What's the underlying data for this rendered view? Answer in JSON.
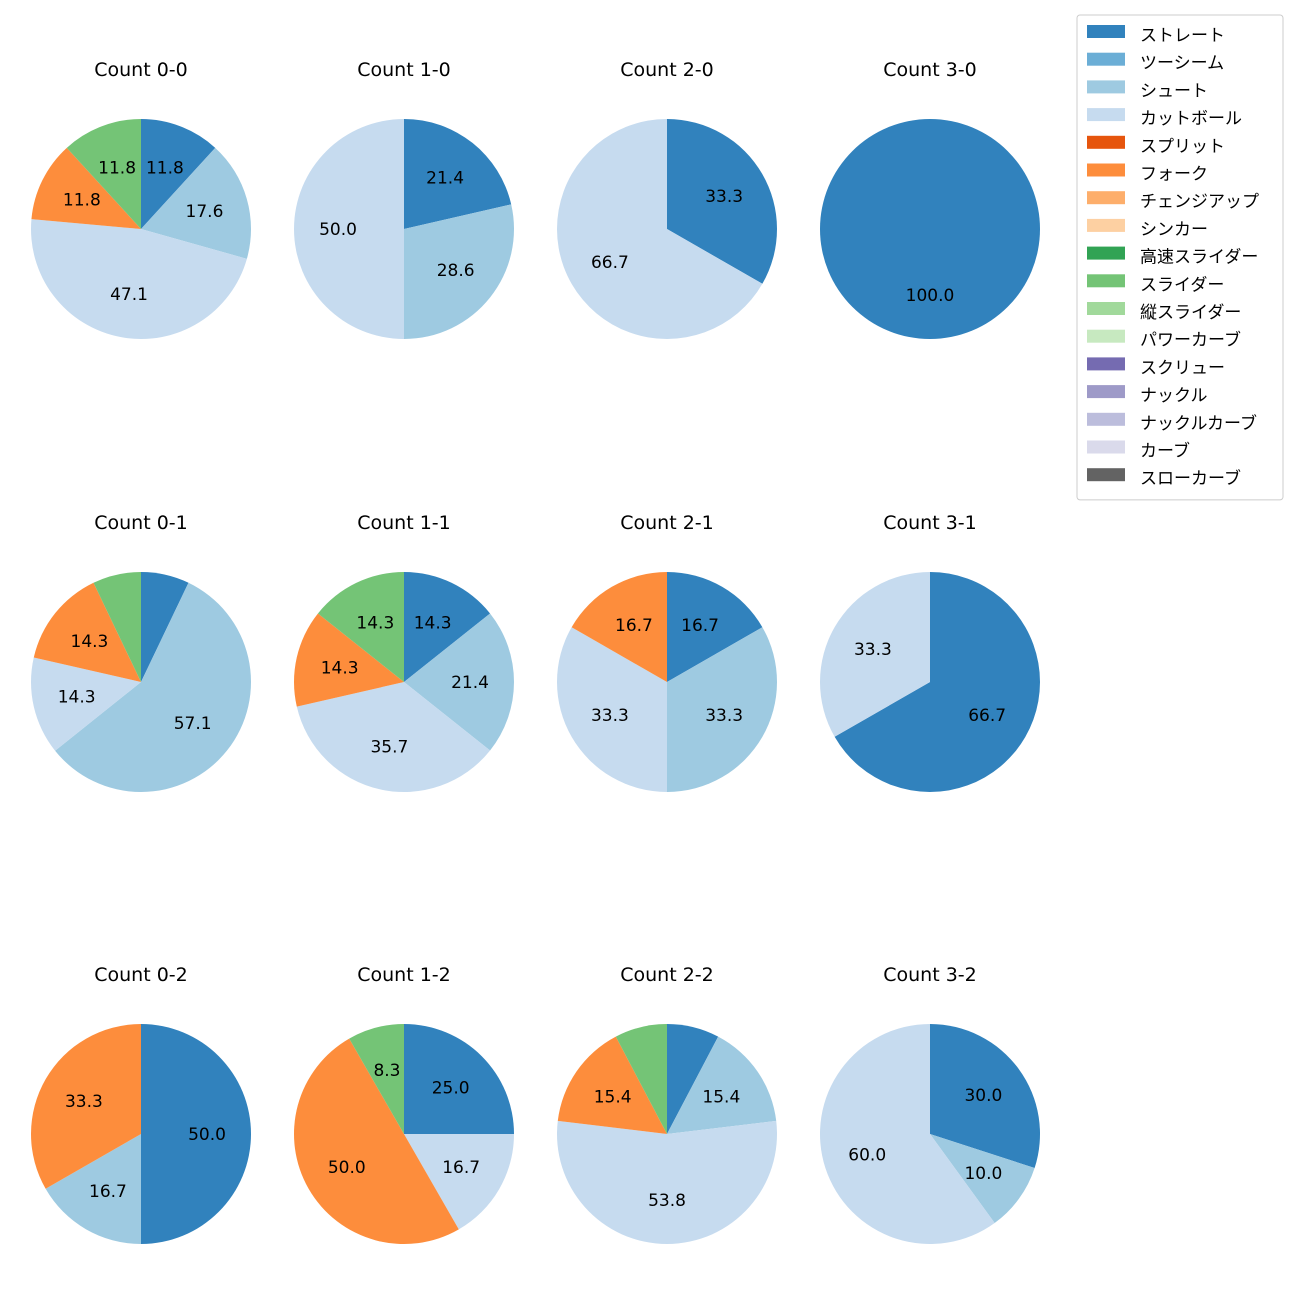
{
  "chart_data": {
    "type": "pie",
    "categories": [
      "ストレート",
      "ツーシーム",
      "シュート",
      "カットボール",
      "スプリット",
      "フォーク",
      "チェンジアップ",
      "シンカー",
      "高速スライダー",
      "スライダー",
      "縦スライダー",
      "パワーカーブ",
      "スクリュー",
      "ナックル",
      "ナックルカーブ",
      "カーブ",
      "スローカーブ"
    ],
    "colors": [
      "#3182bd",
      "#6baed6",
      "#9ecae1",
      "#c6dbef",
      "#e6550d",
      "#fd8d3c",
      "#fdae6b",
      "#fdd0a2",
      "#31a354",
      "#74c476",
      "#a1d99b",
      "#c7e9c0",
      "#756bb1",
      "#9e9ac8",
      "#bcbddc",
      "#dadaeb",
      "#636363"
    ],
    "legend_position": "top-right",
    "label_format": "%.1f",
    "pies": [
      {
        "title": "Count 0-0",
        "slices": [
          {
            "category": "ストレート",
            "value": 11.8
          },
          {
            "category": "シュート",
            "value": 17.6
          },
          {
            "category": "カットボール",
            "value": 47.1
          },
          {
            "category": "フォーク",
            "value": 11.8
          },
          {
            "category": "スライダー",
            "value": 11.8
          }
        ],
        "labels": [
          "11.8",
          "17.6",
          "47.1",
          "11.8",
          "11.8"
        ]
      },
      {
        "title": "Count 1-0",
        "slices": [
          {
            "category": "ストレート",
            "value": 21.4
          },
          {
            "category": "シュート",
            "value": 28.6
          },
          {
            "category": "カットボール",
            "value": 50.0
          }
        ],
        "labels": [
          "21.4",
          "28.6",
          "50.0"
        ]
      },
      {
        "title": "Count 2-0",
        "slices": [
          {
            "category": "ストレート",
            "value": 33.3
          },
          {
            "category": "カットボール",
            "value": 66.7
          }
        ],
        "labels": [
          "33.3",
          "66.7"
        ]
      },
      {
        "title": "Count 3-0",
        "slices": [
          {
            "category": "ストレート",
            "value": 100.0
          }
        ],
        "labels": [
          "100.0"
        ]
      },
      {
        "title": "Count 0-1",
        "slices": [
          {
            "category": "ストレート",
            "value": 7.1
          },
          {
            "category": "シュート",
            "value": 57.1
          },
          {
            "category": "カットボール",
            "value": 14.3
          },
          {
            "category": "フォーク",
            "value": 14.3
          },
          {
            "category": "スライダー",
            "value": 7.1
          }
        ],
        "labels": [
          "",
          "57.1",
          "14.3",
          "14.3",
          ""
        ]
      },
      {
        "title": "Count 1-1",
        "slices": [
          {
            "category": "ストレート",
            "value": 14.3
          },
          {
            "category": "シュート",
            "value": 21.4
          },
          {
            "category": "カットボール",
            "value": 35.7
          },
          {
            "category": "フォーク",
            "value": 14.3
          },
          {
            "category": "スライダー",
            "value": 14.3
          }
        ],
        "labels": [
          "14.3",
          "21.4",
          "35.7",
          "14.3",
          "14.3"
        ]
      },
      {
        "title": "Count 2-1",
        "slices": [
          {
            "category": "ストレート",
            "value": 16.7
          },
          {
            "category": "シュート",
            "value": 33.3
          },
          {
            "category": "カットボール",
            "value": 33.3
          },
          {
            "category": "フォーク",
            "value": 16.7
          }
        ],
        "labels": [
          "16.7",
          "33.3",
          "33.3",
          "16.7"
        ]
      },
      {
        "title": "Count 3-1",
        "slices": [
          {
            "category": "ストレート",
            "value": 66.7
          },
          {
            "category": "カットボール",
            "value": 33.3
          }
        ],
        "labels": [
          "66.7",
          "33.3"
        ]
      },
      {
        "title": "Count 0-2",
        "slices": [
          {
            "category": "ストレート",
            "value": 50.0
          },
          {
            "category": "シュート",
            "value": 16.7
          },
          {
            "category": "フォーク",
            "value": 33.3
          }
        ],
        "labels": [
          "50.0",
          "16.7",
          "33.3"
        ]
      },
      {
        "title": "Count 1-2",
        "slices": [
          {
            "category": "ストレート",
            "value": 25.0
          },
          {
            "category": "カットボール",
            "value": 16.7
          },
          {
            "category": "フォーク",
            "value": 50.0
          },
          {
            "category": "スライダー",
            "value": 8.3
          }
        ],
        "labels": [
          "25.0",
          "16.7",
          "50.0",
          "8.3"
        ]
      },
      {
        "title": "Count 2-2",
        "slices": [
          {
            "category": "ストレート",
            "value": 7.7
          },
          {
            "category": "シュート",
            "value": 15.4
          },
          {
            "category": "カットボール",
            "value": 53.8
          },
          {
            "category": "フォーク",
            "value": 15.4
          },
          {
            "category": "スライダー",
            "value": 7.7
          }
        ],
        "labels": [
          "",
          "15.4",
          "53.8",
          "15.4",
          ""
        ]
      },
      {
        "title": "Count 3-2",
        "slices": [
          {
            "category": "ストレート",
            "value": 30.0
          },
          {
            "category": "シュート",
            "value": 10.0
          },
          {
            "category": "カットボール",
            "value": 60.0
          }
        ],
        "labels": [
          "30.0",
          "10.0",
          "60.0"
        ]
      }
    ]
  }
}
